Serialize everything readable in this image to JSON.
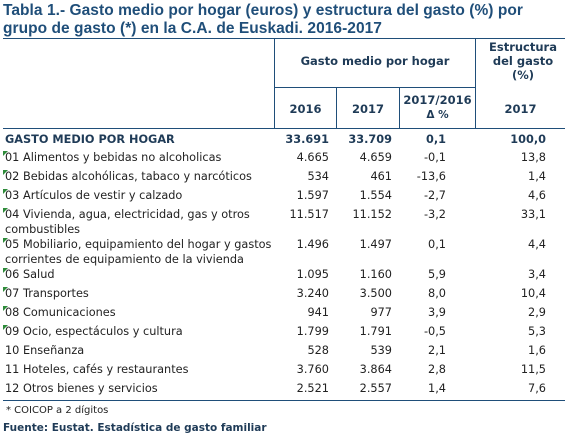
{
  "title": {
    "line1": "Tabla 1.- Gasto medio por hogar (euros) y estructura del gasto (%) por",
    "line2": "grupo de gasto  (*) en la C.A. de Euskadi. 2016-2017"
  },
  "header": {
    "gasto_medio": "Gasto medio por hogar",
    "estructura": "Estructura del gasto (%)",
    "col_2016": "2016",
    "col_2017": "2017",
    "col_var_line1": "2017/2016",
    "col_var_line2": "Δ %",
    "col_est_2017": "2017"
  },
  "total": {
    "label": "GASTO MEDIO POR HOGAR",
    "v2016": "33.691",
    "v2017": "33.709",
    "var": "0,1",
    "est": "100,0"
  },
  "rows": [
    {
      "label": "01  Alimentos y bebidas no alcoholicas",
      "v2016": "4.665",
      "v2017": "4.659",
      "var": "-0,1",
      "est": "13,8"
    },
    {
      "label": "02  Bebidas alcohólicas, tabaco y narcóticos",
      "v2016": "534",
      "v2017": "461",
      "var": "-13,6",
      "est": "1,4"
    },
    {
      "label": "03  Artículos de vestir y calzado",
      "v2016": "1.597",
      "v2017": "1.554",
      "var": "-2,7",
      "est": "4,6"
    },
    {
      "label": "04  Vivienda, agua, electricidad, gas y otros combustibles",
      "v2016": "11.517",
      "v2017": "11.152",
      "var": "-3,2",
      "est": "33,1"
    },
    {
      "label": "05  Mobiliario, equipamiento del hogar y gastos corrientes de equipamiento de la vivienda",
      "v2016": "1.496",
      "v2017": "1.497",
      "var": "0,1",
      "est": "4,4"
    },
    {
      "label": "06  Salud",
      "v2016": "1.095",
      "v2017": "1.160",
      "var": "5,9",
      "est": "3,4"
    },
    {
      "label": "07  Transportes",
      "v2016": "3.240",
      "v2017": "3.500",
      "var": "8,0",
      "est": "10,4"
    },
    {
      "label": "08  Comunicaciones",
      "v2016": "941",
      "v2017": "977",
      "var": "3,9",
      "est": "2,9"
    },
    {
      "label": "09  Ocio, espectáculos y cultura",
      "v2016": "1.799",
      "v2017": "1.791",
      "var": "-0,5",
      "est": "5,3"
    },
    {
      "label": "10  Enseñanza",
      "v2016": "528",
      "v2017": "539",
      "var": "2,1",
      "est": "1,6"
    },
    {
      "label": "11  Hoteles, cafés y restaurantes",
      "v2016": "3.760",
      "v2017": "3.864",
      "var": "2,8",
      "est": "11,5"
    },
    {
      "label": "12  Otros bienes y servicios",
      "v2016": "2.521",
      "v2017": "2.557",
      "var": "1,4",
      "est": "7,6"
    }
  ],
  "footnote": "* COICOP a 2 dígitos",
  "source": "Fuente: Eustat. Estadística de gasto familiar",
  "colors": {
    "accent": "#1f4e79",
    "marker": "#2e8b3a"
  }
}
